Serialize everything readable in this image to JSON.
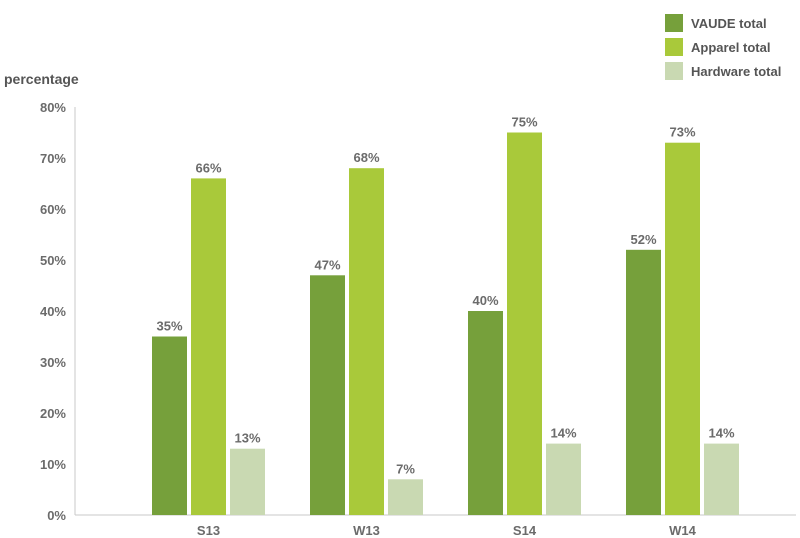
{
  "chart_data": {
    "type": "bar",
    "ylabel": "percentage",
    "ylim": [
      0,
      80
    ],
    "yticks": [
      0,
      10,
      20,
      30,
      40,
      50,
      60,
      70,
      80
    ],
    "tick_suffix": "%",
    "categories": [
      "S13",
      "W13",
      "S14",
      "W14"
    ],
    "series": [
      {
        "name": "VAUDE total",
        "color": "#76a03b",
        "values": [
          35,
          47,
          40,
          52
        ],
        "labels": [
          "35%",
          "47%",
          "40%",
          "52%"
        ]
      },
      {
        "name": "Apparel total",
        "color": "#a9c93a",
        "values": [
          66,
          68,
          75,
          73
        ],
        "labels": [
          "66%",
          "68%",
          "75%",
          "73%"
        ]
      },
      {
        "name": "Hardware total",
        "color": "#c9d9b2",
        "values": [
          13,
          7,
          14,
          14
        ],
        "labels": [
          "13%",
          "7%",
          "14%",
          "14%"
        ]
      }
    ],
    "legend_position": "top-right",
    "grid": false
  }
}
